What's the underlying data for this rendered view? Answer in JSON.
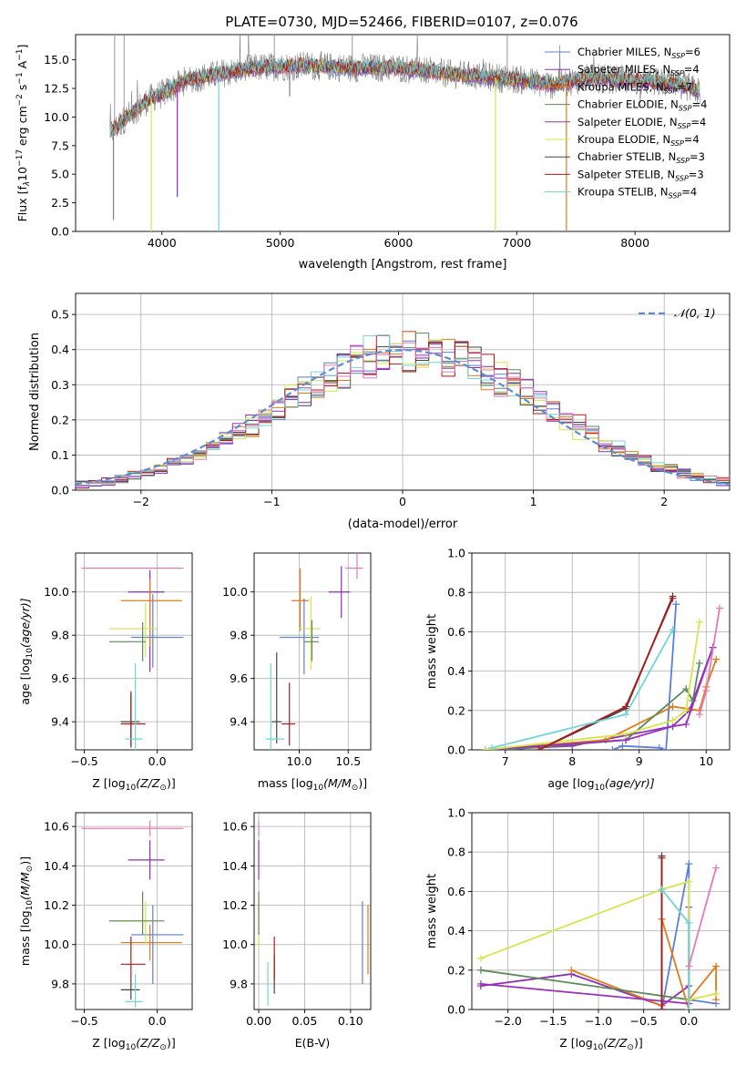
{
  "figure": {
    "title": "PLATE=0730, MJD=52466, FIBERID=0107, z=0.076"
  },
  "colors": {
    "Chabrier MILES": "#5b7fd6",
    "Salpeter MILES": "#8e2fb3",
    "Kroupa MILES": "#e07b18",
    "Chabrier ELODIE": "#5c8a5a",
    "Salpeter ELODIE": "#9a30c0",
    "Kroupa ELODIE": "#d4e64a",
    "Chabrier STELIB": "#444444",
    "Salpeter STELIB": "#b21a1a",
    "Kroupa STELIB": "#6fd6d6",
    "spectrum": "#808080",
    "normal": "#5b8dd6",
    "pink": "#e57ab8"
  },
  "chart_data": [
    {
      "id": "spectrum",
      "type": "line",
      "xlabel": "wavelength [Angstrom, rest frame]",
      "ylabel": "Flux [f$_\\lambda$10$^{-17}$ erg cm$^{-2}$ s$^{-1}$ A$^{-1}$]",
      "xlim": [
        3270,
        8800
      ],
      "ylim": [
        0,
        17.2
      ],
      "xticks": [
        4000,
        5000,
        6000,
        7000,
        8000
      ],
      "yticks": [
        0.0,
        2.5,
        5.0,
        7.5,
        10.0,
        12.5,
        15.0
      ],
      "legend_position": "top-right",
      "legend": [
        {
          "label": "Chabrier MILES, N",
          "sub": "SSP",
          "tail": "=6",
          "color": "#5b7fd6"
        },
        {
          "label": "Salpeter MILES, N",
          "sub": "SSP",
          "tail": "=4",
          "color": "#8e2fb3"
        },
        {
          "label": "Kroupa MILES, N",
          "sub": "SSP",
          "tail": "=7",
          "color": "#e07b18"
        },
        {
          "label": "Chabrier ELODIE, N",
          "sub": "SSP",
          "tail": "=4",
          "color": "#5c8a5a"
        },
        {
          "label": "Salpeter ELODIE, N",
          "sub": "SSP",
          "tail": "=4",
          "color": "#9a30c0"
        },
        {
          "label": "Kroupa ELODIE, N",
          "sub": "SSP",
          "tail": "=4",
          "color": "#d4e64a"
        },
        {
          "label": "Chabrier STELIB, N",
          "sub": "SSP",
          "tail": "=3",
          "color": "#444444"
        },
        {
          "label": "Salpeter STELIB, N",
          "sub": "SSP",
          "tail": "=3",
          "color": "#b21a1a"
        },
        {
          "label": "Kroupa STELIB, N",
          "sub": "SSP",
          "tail": "=4",
          "color": "#6fd6d6"
        }
      ],
      "continuum": [
        [
          3560,
          8.5
        ],
        [
          3700,
          10.0
        ],
        [
          3900,
          11.6
        ],
        [
          4000,
          12.0
        ],
        [
          4200,
          13.2
        ],
        [
          4500,
          13.8
        ],
        [
          4800,
          14.3
        ],
        [
          5200,
          14.5
        ],
        [
          5600,
          14.3
        ],
        [
          6000,
          14.3
        ],
        [
          6500,
          13.7
        ],
        [
          7000,
          13.3
        ],
        [
          7300,
          12.8
        ],
        [
          7600,
          13.4
        ],
        [
          8000,
          13.2
        ],
        [
          8400,
          12.8
        ],
        [
          8550,
          12.2
        ]
      ]
    },
    {
      "id": "residuals",
      "type": "step",
      "xlabel": "(data-model)/error",
      "ylabel": "Normed distribution",
      "xlim": [
        -2.5,
        2.5
      ],
      "ylim": [
        0,
        0.56
      ],
      "xticks": [
        -2,
        -1,
        0,
        1,
        2
      ],
      "yticks": [
        0.0,
        0.1,
        0.2,
        0.3,
        0.4,
        0.5
      ],
      "legend": [
        "$\\mathcal{N}(0,1)$"
      ],
      "normal_label": "𝒩(0, 1)",
      "bin_width": 0.1,
      "grid": true
    },
    {
      "id": "age_vs_Z",
      "type": "errorbar",
      "xlabel": "Z [log$_{10}$($Z/Z_\\odot$)]",
      "ylabel": "age  [log$_{10}$($age/yr$)]",
      "xlim": [
        -0.56,
        0.24
      ],
      "ylim": [
        9.27,
        10.18
      ],
      "xticks": [
        -0.5,
        0.0
      ],
      "yticks": [
        9.4,
        9.6,
        9.8,
        10.0
      ],
      "points": [
        {
          "x": -0.05,
          "y": 10.11,
          "xerr": 0.0,
          "yerr": [
            0.0,
            0.0
          ],
          "color": "pink",
          "xlo": -0.52,
          "xhi": 0.18
        },
        {
          "x": -0.05,
          "y": 10.0,
          "xlo": -0.2,
          "xhi": 0.05,
          "ylo": 9.63,
          "yhi": 10.1,
          "color": "Salpeter MILES"
        },
        {
          "x": -0.05,
          "y": 9.96,
          "xlo": -0.25,
          "xhi": 0.17,
          "ylo": 9.75,
          "yhi": 10.06,
          "color": "Kroupa MILES"
        },
        {
          "x": -0.03,
          "y": 9.79,
          "xlo": -0.18,
          "xhi": 0.18,
          "ylo": 9.65,
          "yhi": 9.99,
          "color": "Chabrier MILES"
        },
        {
          "x": -0.08,
          "y": 9.83,
          "xlo": -0.33,
          "xhi": 0.0,
          "ylo": 9.7,
          "yhi": 9.95,
          "color": "Kroupa ELODIE"
        },
        {
          "x": -0.1,
          "y": 9.77,
          "xlo": -0.33,
          "xhi": -0.08,
          "ylo": 9.68,
          "yhi": 9.86,
          "color": "Chabrier ELODIE"
        },
        {
          "x": -0.18,
          "y": 9.4,
          "xlo": -0.25,
          "xhi": -0.12,
          "ylo": 9.28,
          "yhi": 9.54,
          "color": "Chabrier STELIB"
        },
        {
          "x": -0.18,
          "y": 9.39,
          "xlo": -0.25,
          "xhi": -0.08,
          "ylo": 9.29,
          "yhi": 9.53,
          "color": "Salpeter STELIB"
        },
        {
          "x": -0.15,
          "y": 9.32,
          "xlo": -0.22,
          "xhi": -0.1,
          "ylo": 9.27,
          "yhi": 9.67,
          "color": "Kroupa STELIB"
        }
      ]
    },
    {
      "id": "age_vs_mass",
      "type": "errorbar",
      "xlabel": "mass [log$_{10}$($M/M_\\odot$)]",
      "ylabel": "",
      "xlim": [
        9.54,
        10.73
      ],
      "ylim": [
        9.27,
        10.18
      ],
      "xticks": [
        10.0,
        10.5
      ],
      "yticks": [
        9.4,
        9.6,
        9.8,
        10.0
      ],
      "points": [
        {
          "x": 10.59,
          "y": 10.11,
          "xlo": 10.47,
          "xhi": 10.65,
          "ylo": 10.06,
          "yhi": 10.18,
          "color": "pink"
        },
        {
          "x": 10.43,
          "y": 10.0,
          "xlo": 10.3,
          "xhi": 10.52,
          "ylo": 9.88,
          "yhi": 10.12,
          "color": "Salpeter MILES"
        },
        {
          "x": 10.01,
          "y": 9.96,
          "xlo": 9.92,
          "xhi": 10.1,
          "ylo": 9.82,
          "yhi": 10.11,
          "color": "Kroupa MILES"
        },
        {
          "x": 10.05,
          "y": 9.79,
          "xlo": 9.8,
          "xhi": 10.2,
          "ylo": 9.62,
          "yhi": 9.97,
          "color": "Chabrier MILES"
        },
        {
          "x": 10.12,
          "y": 9.83,
          "xlo": 10.0,
          "xhi": 10.22,
          "ylo": 9.64,
          "yhi": 9.98,
          "color": "Kroupa ELODIE"
        },
        {
          "x": 10.13,
          "y": 9.77,
          "xlo": 10.05,
          "xhi": 10.2,
          "ylo": 9.68,
          "yhi": 9.87,
          "color": "Chabrier ELODIE"
        },
        {
          "x": 9.77,
          "y": 9.4,
          "xlo": 9.72,
          "xhi": 9.82,
          "ylo": 9.3,
          "yhi": 9.72,
          "color": "Chabrier STELIB"
        },
        {
          "x": 9.9,
          "y": 9.39,
          "xlo": 9.82,
          "xhi": 9.96,
          "ylo": 9.29,
          "yhi": 9.58,
          "color": "Salpeter STELIB"
        },
        {
          "x": 9.71,
          "y": 9.32,
          "xlo": 9.66,
          "xhi": 9.85,
          "ylo": 9.27,
          "yhi": 9.67,
          "color": "Kroupa STELIB"
        }
      ]
    },
    {
      "id": "weight_vs_age",
      "type": "line",
      "xlabel": "age  [log$_{10}$($age/yr$)]",
      "ylabel": "mass weight",
      "xlim": [
        6.5,
        10.35
      ],
      "ylim": [
        0,
        1.0
      ],
      "xticks": [
        7,
        8,
        9,
        10
      ],
      "yticks": [
        0.0,
        0.2,
        0.4,
        0.6,
        0.8,
        1.0
      ],
      "series": [
        {
          "color": "Chabrier MILES",
          "x": [
            8.6,
            8.75,
            9.3,
            9.4,
            9.55
          ],
          "y": [
            0.0,
            0.02,
            0.01,
            0.0,
            0.74
          ]
        },
        {
          "color": "Salpeter MILES",
          "x": [
            6.7,
            8.0,
            9.5,
            9.75,
            10.1
          ],
          "y": [
            0.0,
            0.02,
            0.12,
            0.2,
            0.52
          ]
        },
        {
          "color": "Kroupa MILES",
          "x": [
            6.7,
            8.5,
            9.5,
            9.9,
            10.0,
            10.15
          ],
          "y": [
            0.0,
            0.05,
            0.22,
            0.2,
            0.32,
            0.46
          ]
        },
        {
          "color": "Chabrier ELODIE",
          "x": [
            7.0,
            8.8,
            9.7,
            9.8,
            9.9
          ],
          "y": [
            0.0,
            0.05,
            0.31,
            0.25,
            0.44
          ]
        },
        {
          "color": "Salpeter ELODIE",
          "x": [
            6.7,
            8.8,
            9.5,
            9.7,
            10.1
          ],
          "y": [
            0.0,
            0.05,
            0.12,
            0.13,
            0.52
          ]
        },
        {
          "color": "Kroupa ELODIE",
          "x": [
            6.7,
            8.8,
            9.5,
            9.7,
            9.9
          ],
          "y": [
            0.0,
            0.08,
            0.15,
            0.2,
            0.65
          ]
        },
        {
          "color": "Chabrier STELIB",
          "x": [
            7.5,
            8.8,
            9.5
          ],
          "y": [
            0.0,
            0.21,
            0.78
          ]
        },
        {
          "color": "Salpeter STELIB",
          "x": [
            7.5,
            8.8,
            9.5
          ],
          "y": [
            0.0,
            0.22,
            0.77
          ]
        },
        {
          "color": "Kroupa STELIB",
          "x": [
            6.8,
            8.8,
            9.5
          ],
          "y": [
            0.01,
            0.18,
            0.61
          ]
        },
        {
          "color": "pink",
          "x": [
            9.9,
            10.0,
            10.2
          ],
          "y": [
            0.18,
            0.3,
            0.72
          ]
        }
      ]
    },
    {
      "id": "mass_vs_Z",
      "type": "errorbar",
      "xlabel": "Z [log$_{10}$($Z/Z_\\odot$)]",
      "ylabel": "mass [log$_{10}$($M/M_\\odot$)]",
      "xlim": [
        -0.56,
        0.24
      ],
      "ylim": [
        9.67,
        10.67
      ],
      "xticks": [
        -0.5,
        0.0
      ],
      "yticks": [
        9.8,
        10.0,
        10.2,
        10.4,
        10.6
      ],
      "points": [
        {
          "x": -0.05,
          "y": 10.59,
          "xlo": -0.52,
          "xhi": 0.18,
          "ylo": 10.55,
          "yhi": 10.63,
          "color": "pink"
        },
        {
          "x": -0.05,
          "y": 10.43,
          "xlo": -0.2,
          "xhi": 0.05,
          "ylo": 10.33,
          "yhi": 10.53,
          "color": "Salpeter MILES"
        },
        {
          "x": -0.05,
          "y": 10.01,
          "xlo": -0.25,
          "xhi": 0.17,
          "ylo": 9.92,
          "yhi": 10.1,
          "color": "Kroupa MILES"
        },
        {
          "x": -0.03,
          "y": 10.05,
          "xlo": -0.18,
          "xhi": 0.18,
          "ylo": 9.8,
          "yhi": 10.2,
          "color": "Chabrier MILES"
        },
        {
          "x": -0.08,
          "y": 10.12,
          "xlo": -0.33,
          "xhi": 0.0,
          "ylo": 10.0,
          "yhi": 10.22,
          "color": "Kroupa ELODIE"
        },
        {
          "x": -0.1,
          "y": 10.12,
          "xlo": -0.33,
          "xhi": 0.05,
          "ylo": 10.05,
          "yhi": 10.27,
          "color": "Chabrier ELODIE"
        },
        {
          "x": -0.18,
          "y": 9.77,
          "xlo": -0.25,
          "xhi": -0.12,
          "ylo": 9.72,
          "yhi": 9.82,
          "color": "Chabrier STELIB"
        },
        {
          "x": -0.18,
          "y": 9.9,
          "xlo": -0.25,
          "xhi": -0.08,
          "ylo": 9.82,
          "yhi": 10.04,
          "color": "Salpeter STELIB"
        },
        {
          "x": -0.15,
          "y": 9.71,
          "xlo": -0.22,
          "xhi": -0.1,
          "ylo": 9.68,
          "yhi": 9.85,
          "color": "Kroupa STELIB"
        }
      ]
    },
    {
      "id": "mass_vs_ebv",
      "type": "errorbar",
      "xlabel": "E(B-V)",
      "ylabel": "",
      "xlim": [
        -0.005,
        0.122
      ],
      "ylim": [
        9.67,
        10.67
      ],
      "xticks": [
        0.0,
        0.05,
        0.1
      ],
      "xtick_labels": [
        "0.00",
        "0.05",
        "0.10"
      ],
      "yticks": [
        9.8,
        10.0,
        10.2,
        10.4,
        10.6
      ],
      "points": [
        {
          "x": 0.0,
          "y": 10.59,
          "ylo": 10.55,
          "yhi": 10.63,
          "color": "pink"
        },
        {
          "x": 0.0,
          "y": 10.43,
          "ylo": 10.33,
          "yhi": 10.53,
          "color": "Salpeter MILES"
        },
        {
          "x": 0.119,
          "y": 10.01,
          "ylo": 9.85,
          "yhi": 10.2,
          "color": "Kroupa MILES"
        },
        {
          "x": 0.113,
          "y": 10.05,
          "ylo": 9.8,
          "yhi": 10.22,
          "color": "Chabrier MILES"
        },
        {
          "x": 0.0,
          "y": 10.12,
          "ylo": 9.98,
          "yhi": 10.22,
          "color": "Kroupa ELODIE"
        },
        {
          "x": 0.0,
          "y": 10.12,
          "ylo": 10.05,
          "yhi": 10.27,
          "color": "Chabrier ELODIE"
        },
        {
          "x": 0.017,
          "y": 9.77,
          "ylo": 9.75,
          "yhi": 9.95,
          "color": "Chabrier STELIB"
        },
        {
          "x": 0.017,
          "y": 9.9,
          "ylo": 9.82,
          "yhi": 10.04,
          "color": "Salpeter STELIB"
        },
        {
          "x": 0.01,
          "y": 9.71,
          "ylo": 9.69,
          "yhi": 9.91,
          "color": "Kroupa STELIB"
        }
      ]
    },
    {
      "id": "weight_vs_Z",
      "type": "line",
      "xlabel": "Z [log$_{10}$($Z/Z_\\odot$)]",
      "ylabel": "mass weight",
      "xlim": [
        -2.4,
        0.45
      ],
      "ylim": [
        0,
        1.0
      ],
      "xticks": [
        -2.0,
        -1.5,
        -1.0,
        -0.5,
        0.0
      ],
      "yticks": [
        0.0,
        0.2,
        0.4,
        0.6,
        0.8,
        1.0
      ],
      "series": [
        {
          "color": "Chabrier MILES",
          "x": [
            -0.3,
            0.0,
            0.0,
            0.3
          ],
          "y": [
            0.0,
            0.74,
            0.05,
            0.03
          ]
        },
        {
          "color": "Salpeter MILES",
          "x": [
            -2.3,
            -1.3,
            -0.3,
            0.0
          ],
          "y": [
            0.12,
            0.18,
            0.02,
            0.12
          ]
        },
        {
          "color": "Kroupa MILES",
          "x": [
            -1.3,
            -0.3,
            -0.3,
            0.0,
            0.0,
            0.3,
            0.3
          ],
          "y": [
            0.2,
            0.02,
            0.46,
            0.0,
            0.05,
            0.22,
            0.05
          ]
        },
        {
          "color": "Chabrier ELODIE",
          "x": [
            -2.3,
            0.0,
            0.0
          ],
          "y": [
            0.2,
            0.05,
            0.44
          ]
        },
        {
          "color": "Salpeter ELODIE",
          "x": [
            -2.3,
            0.0,
            0.0
          ],
          "y": [
            0.13,
            0.03,
            0.52
          ]
        },
        {
          "color": "Kroupa ELODIE",
          "x": [
            -2.3,
            -0.3,
            0.0,
            0.0,
            0.3
          ],
          "y": [
            0.26,
            0.61,
            0.65,
            0.05,
            0.08
          ]
        },
        {
          "color": "Chabrier STELIB",
          "x": [
            -0.3,
            -0.3
          ],
          "y": [
            0.0,
            0.78
          ]
        },
        {
          "color": "Salpeter STELIB",
          "x": [
            -0.3,
            -0.3
          ],
          "y": [
            0.0,
            0.77
          ]
        },
        {
          "color": "Kroupa STELIB",
          "x": [
            -0.3,
            0.0,
            0.0
          ],
          "y": [
            0.61,
            0.44,
            0.0
          ]
        },
        {
          "color": "pink",
          "x": [
            0.0,
            0.3
          ],
          "y": [
            0.22,
            0.72
          ]
        }
      ]
    }
  ],
  "labels": {
    "spec_ylabel_main": "Flux [f",
    "spec_ylabel_lambda": "λ",
    "spec_ylabel_rest": "10",
    "spec_ylabel_e1": "−17",
    "spec_ylabel_mid": " erg cm",
    "spec_ylabel_e2": "−2",
    "spec_ylabel_s": " s",
    "spec_ylabel_e3": "−1",
    "spec_ylabel_a": " A",
    "spec_ylabel_e4": "−1",
    "spec_ylabel_end": "]",
    "z_xlabel": "Z [log",
    "z_xlabel_sub": "10",
    "z_xlabel_tail": "(Z/Z",
    "z_xlabel_sun": "⊙",
    "z_xlabel_end": ")]",
    "age_label": "age  [log",
    "age_label_sub": "10",
    "age_label_tail": "(age/yr)]",
    "mass_label": "mass [log",
    "mass_label_sub": "10",
    "mass_label_tail": "(M/M",
    "mass_label_sun": "⊙",
    "mass_label_end": ")]"
  }
}
